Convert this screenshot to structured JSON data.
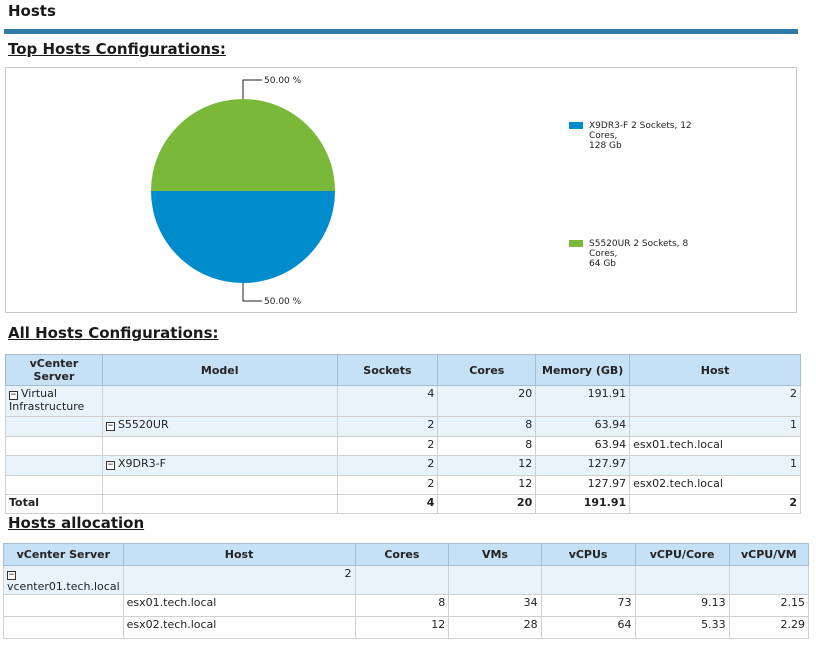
{
  "page": {
    "title": "Hosts"
  },
  "top_configs": {
    "title": "Top Hosts Configurations:",
    "colors": {
      "blue": "#008bcc",
      "green": "#7ab83a"
    }
  },
  "chart_data": {
    "type": "pie",
    "slices": [
      {
        "label": "X9DR3-F 2 Sockets, 12 Cores, 128 Gb",
        "value": 50.0,
        "display": "50.00 %",
        "color": "#008bcc"
      },
      {
        "label": "S5520UR 2 Sockets, 8 Cores, 64 Gb",
        "value": 50.0,
        "display": "50.00 %",
        "color": "#7ab83a"
      }
    ],
    "legend": [
      {
        "line1": "X9DR3-F 2 Sockets, 12 Cores,",
        "line2": "128 Gb",
        "color": "#008bcc"
      },
      {
        "line1": "S5520UR 2 Sockets, 8 Cores,",
        "line2": "64 Gb",
        "color": "#7ab83a"
      }
    ],
    "legend_position": "right"
  },
  "all_configs": {
    "title": "All Hosts Configurations:",
    "headers": [
      "vCenter Server",
      "Model",
      "Sockets",
      "Cores",
      "Memory (GB)",
      "Host"
    ],
    "rows": [
      {
        "vcenter": "Virtual Infrastructure",
        "model": "",
        "sockets": "4",
        "cores": "20",
        "memory": "191.91",
        "host": "2"
      },
      {
        "vcenter": "",
        "model": "S5520UR",
        "sockets": "2",
        "cores": "8",
        "memory": "63.94",
        "host": "1"
      },
      {
        "vcenter": "",
        "model": "",
        "sockets": "2",
        "cores": "8",
        "memory": "63.94",
        "host": "esx01.tech.local"
      },
      {
        "vcenter": "",
        "model": "X9DR3-F",
        "sockets": "2",
        "cores": "12",
        "memory": "127.97",
        "host": "1"
      },
      {
        "vcenter": "",
        "model": "",
        "sockets": "2",
        "cores": "12",
        "memory": "127.97",
        "host": "esx02.tech.local"
      }
    ],
    "total": {
      "label": "Total",
      "sockets": "4",
      "cores": "20",
      "memory": "191.91",
      "host": "2"
    },
    "toggle_symbol": "−"
  },
  "allocation": {
    "title": "Hosts allocation",
    "headers": [
      "vCenter Server",
      "Host",
      "Cores",
      "VMs",
      "vCPUs",
      "vCPU/Core",
      "vCPU/VM"
    ],
    "group": {
      "vcenter": "vcenter01.tech.local",
      "host": "2"
    },
    "rows": [
      {
        "host": "esx01.tech.local",
        "cores": "8",
        "vms": "34",
        "vcpus": "73",
        "vcpu_core": "9.13",
        "vcpu_vm": "2.15"
      },
      {
        "host": "esx02.tech.local",
        "cores": "12",
        "vms": "28",
        "vcpus": "64",
        "vcpu_core": "5.33",
        "vcpu_vm": "2.29"
      }
    ]
  }
}
